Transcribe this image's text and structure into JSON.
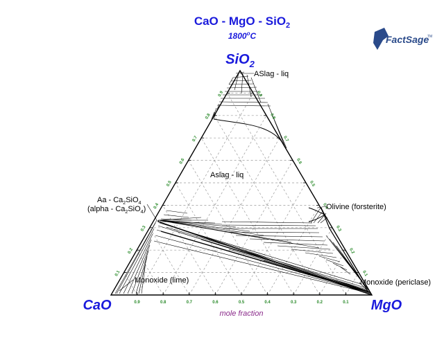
{
  "title": {
    "text": "CaO - MgO - SiO",
    "sub": "2"
  },
  "subtitle": {
    "text": "1800",
    "unit": "C"
  },
  "logo": {
    "text": "FactSage",
    "tm": "TM"
  },
  "vertices": {
    "top": {
      "text": "SiO",
      "sub": "2"
    },
    "left": {
      "text": "CaO"
    },
    "right": {
      "text": "MgO"
    }
  },
  "regions": {
    "aslag_top": "ASlag - liq",
    "aslag_liq": "Aslag - liq",
    "ca2sio4_line1_a": "Aa - Ca",
    "ca2sio4_line1_b": "2",
    "ca2sio4_line1_c": "SiO",
    "ca2sio4_line1_d": "4",
    "ca2sio4_line2_a": "(alpha - Ca",
    "ca2sio4_line2_b": "2",
    "ca2sio4_line2_c": "SiO",
    "ca2sio4_line2_d": "4",
    "ca2sio4_line2_e": ")",
    "olivine": "Olivine (forsterite)",
    "lime": "Monoxide (lime)",
    "periclase": "Monoxide (periclase)"
  },
  "axis": {
    "label": "mole fraction",
    "bottom_ticks": [
      "0.9",
      "0.8",
      "0.7",
      "0.6",
      "0.5",
      "0.4",
      "0.3",
      "0.2",
      "0.1"
    ],
    "left_ticks": [
      "0.9",
      "0.8",
      "0.7",
      "0.6",
      "0.5",
      "0.4",
      "0.3",
      "0.2",
      "0.1"
    ],
    "right_ticks": [
      "0.9",
      "0.8",
      "0.7",
      "0.6",
      "0.5",
      "0.4",
      "0.3",
      "0.2",
      "0.1"
    ]
  },
  "colors": {
    "title": "#1a1adc",
    "vertex": "#1a1adc",
    "tick": "#2a8a2a",
    "axis_label": "#8a2a8a",
    "grid": "#9a9a9a",
    "logo": "#2a4a8a"
  }
}
